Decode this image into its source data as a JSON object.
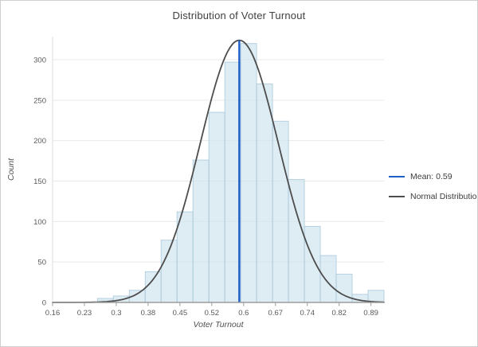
{
  "window": {
    "title": "Distribution of Voter Turnout"
  },
  "chart_data": {
    "type": "bar",
    "subtype": "histogram-with-normal-curve",
    "title": "Distribution of Voter Turnout",
    "xlabel": "Voter Turnout",
    "ylabel": "Count",
    "xlim": [
      0.16,
      0.9233
    ],
    "ylim": [
      0,
      330
    ],
    "grid": "horizontal",
    "legend_position": "right",
    "x_tick_labels": [
      "0.16",
      "0.23",
      "0.3",
      "0.38",
      "0.45",
      "0.52",
      "0.6",
      "0.67",
      "0.74",
      "0.82",
      "0.89"
    ],
    "x_tick_values": [
      0.16,
      0.23333,
      0.30667,
      0.38,
      0.45333,
      0.52667,
      0.6,
      0.67333,
      0.74667,
      0.82,
      0.89333
    ],
    "y_ticks": [
      0,
      50,
      100,
      150,
      200,
      250,
      300
    ],
    "bins": {
      "start": 0.2633,
      "width": 0.036667,
      "counts": [
        5,
        8,
        15,
        38,
        77,
        112,
        176,
        235,
        297,
        320,
        270,
        224,
        152,
        94,
        58,
        35,
        10,
        15
      ]
    },
    "normal_curve": {
      "mean": 0.59,
      "sigma": 0.09,
      "peak": 324
    },
    "mean_line": {
      "x": 0.59,
      "top_count": 324
    },
    "legend": [
      {
        "label": "Mean: 0.59",
        "color": "#1d5ec7",
        "series": "mean-line"
      },
      {
        "label": "Normal Distribution",
        "color": "#4d4d4d",
        "series": "normal-curve"
      }
    ],
    "colors": {
      "bar_fill": "#cde2ef",
      "bar_border": "#a6c7da",
      "grid": "#e9e9e9",
      "x_axis": "#9b9b9b",
      "y_axis": "#dcdcdc",
      "tick_text": "#5a5a5a",
      "axis_title_text": "#4f4f4f",
      "curve": "#4d4d4d",
      "mean": "#1d5ec7"
    }
  }
}
